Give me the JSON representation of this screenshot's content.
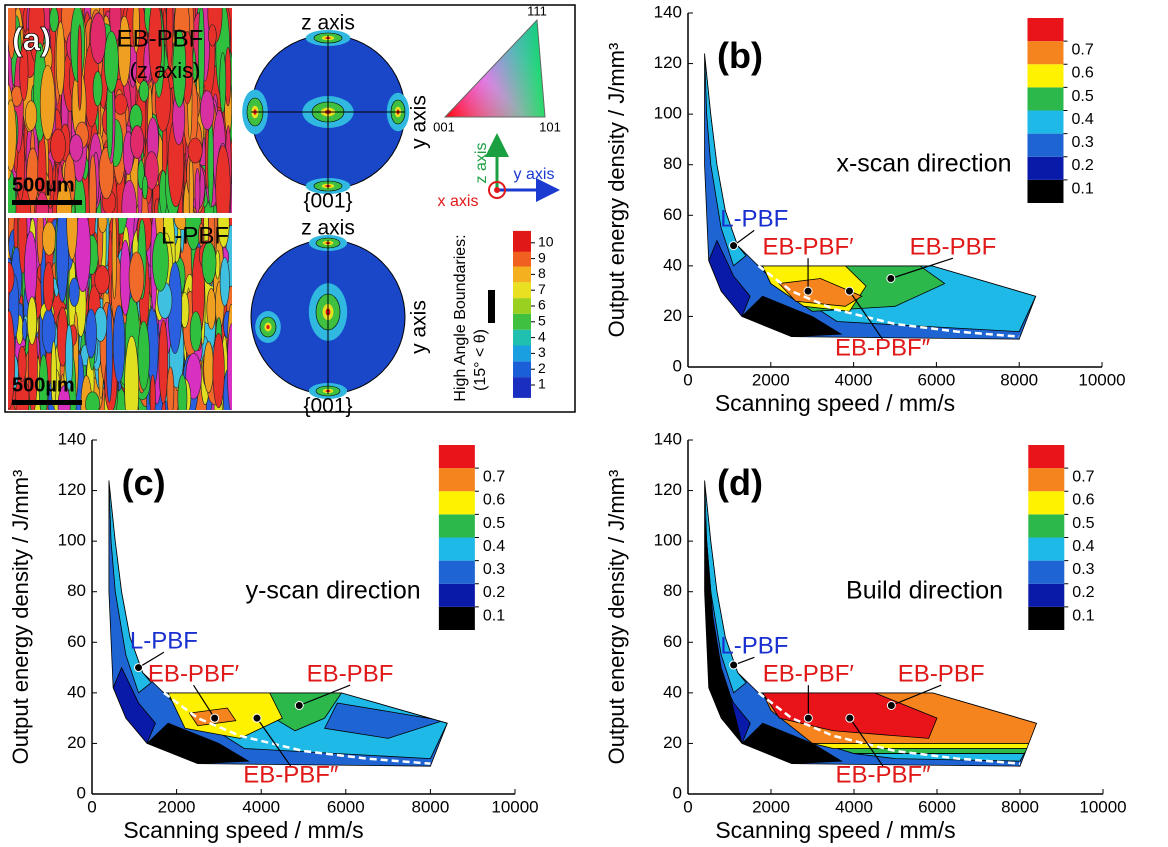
{
  "panel_a": {
    "label": "(a)",
    "top_image": {
      "title": "EB-PBF",
      "subtitle": "(z axis)",
      "scale_bar": "500µm"
    },
    "bottom_image": {
      "title": "L-PBF",
      "scale_bar": "500µm"
    },
    "pole_figures": [
      {
        "top_label": "z axis",
        "side_label": "y axis",
        "bottom_label": "{001}"
      },
      {
        "top_label": "z axis",
        "side_label": "y axis",
        "bottom_label": "{001}"
      }
    ],
    "triangle": {
      "corners": [
        "111",
        "001",
        "101"
      ]
    },
    "axes_triad": {
      "z": "z axis",
      "y": "y axis",
      "x": "x axis"
    },
    "boundary_legend": {
      "title": "High Angle Boundaries:",
      "condition": "(15° < θ)"
    },
    "colorbar": {
      "ticks": [
        1,
        2,
        3,
        4,
        5,
        6,
        7,
        8,
        9,
        10
      ],
      "colors": [
        "#1a2fbf",
        "#1a5fd8",
        "#1aa0e0",
        "#1fc0b0",
        "#3fc040",
        "#9ad020",
        "#e8e020",
        "#f5b020",
        "#f06020",
        "#e01818"
      ]
    }
  },
  "chart_data": [
    {
      "type": "contour",
      "panel_label": "(b)",
      "title": "x-scan direction",
      "xlabel": "Scanning speed / mm/s",
      "ylabel": "Output energy density / J/mm³",
      "xlim": [
        0,
        10000
      ],
      "ylim": [
        0,
        140
      ],
      "xticks": [
        0,
        2000,
        4000,
        6000,
        8000,
        10000
      ],
      "yticks": [
        0,
        20,
        40,
        60,
        80,
        100,
        120,
        140
      ],
      "levels": [
        0.1,
        0.2,
        0.3,
        0.4,
        0.5,
        0.6,
        0.7
      ],
      "colors": [
        "#000000",
        "#0a1aa8",
        "#1e64d2",
        "#1eb9e6",
        "#2db84c",
        "#fff200",
        "#f5841f",
        "#e8141a"
      ],
      "annotations": [
        {
          "text": "L-PBF",
          "x": 1100,
          "y": 48
        },
        {
          "text": "EB-PBF′",
          "x": 2900,
          "y": 30
        },
        {
          "text": "EB-PBF",
          "x": 4900,
          "y": 35
        },
        {
          "text": "EB-PBF″",
          "x": 3900,
          "y": 30
        }
      ]
    },
    {
      "type": "contour",
      "panel_label": "(c)",
      "title": "y-scan direction",
      "xlabel": "Scanning speed / mm/s",
      "ylabel": "Output energy density / J/mm³",
      "xlim": [
        0,
        10000
      ],
      "ylim": [
        0,
        140
      ],
      "xticks": [
        0,
        2000,
        4000,
        6000,
        8000,
        10000
      ],
      "yticks": [
        0,
        20,
        40,
        60,
        80,
        100,
        120,
        140
      ],
      "levels": [
        0.1,
        0.2,
        0.3,
        0.4,
        0.5,
        0.6,
        0.7
      ],
      "colors": [
        "#000000",
        "#0a1aa8",
        "#1e64d2",
        "#1eb9e6",
        "#2db84c",
        "#fff200",
        "#f5841f",
        "#e8141a"
      ],
      "annotations": [
        {
          "text": "L-PBF",
          "x": 1100,
          "y": 50
        },
        {
          "text": "EB-PBF′",
          "x": 2900,
          "y": 30
        },
        {
          "text": "EB-PBF",
          "x": 4900,
          "y": 35
        },
        {
          "text": "EB-PBF″",
          "x": 3900,
          "y": 30
        }
      ]
    },
    {
      "type": "contour",
      "panel_label": "(d)",
      "title": "Build direction",
      "xlabel": "Scanning speed / mm/s",
      "ylabel": "Output energy density / J/mm³",
      "xlim": [
        0,
        10000
      ],
      "ylim": [
        0,
        140
      ],
      "xticks": [
        0,
        2000,
        4000,
        6000,
        8000,
        10000
      ],
      "yticks": [
        0,
        20,
        40,
        60,
        80,
        100,
        120,
        140
      ],
      "levels": [
        0.1,
        0.2,
        0.3,
        0.4,
        0.5,
        0.6,
        0.7
      ],
      "colors": [
        "#000000",
        "#0a1aa8",
        "#1e64d2",
        "#1eb9e6",
        "#2db84c",
        "#fff200",
        "#f5841f",
        "#e8141a"
      ],
      "annotations": [
        {
          "text": "L-PBF",
          "x": 1100,
          "y": 51
        },
        {
          "text": "EB-PBF′",
          "x": 2900,
          "y": 30
        },
        {
          "text": "EB-PBF",
          "x": 4900,
          "y": 35
        },
        {
          "text": "EB-PBF″",
          "x": 3900,
          "y": 30
        }
      ]
    }
  ]
}
